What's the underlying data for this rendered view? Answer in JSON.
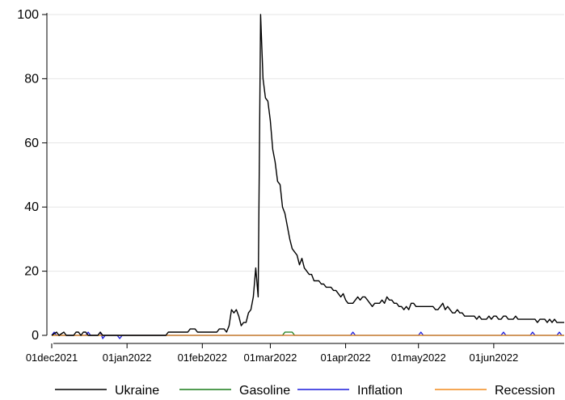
{
  "chart_data": {
    "type": "line",
    "title": "",
    "xlabel": "",
    "ylabel": "",
    "x_ticks": [
      "01dec2021",
      "01jan2022",
      "01feb2022",
      "01mar2022",
      "01apr2022",
      "01may2022",
      "01jun2022"
    ],
    "x_tick_dates": [
      "2021-12-01",
      "2022-01-01",
      "2022-02-01",
      "2022-03-01",
      "2022-04-01",
      "2022-05-01",
      "2022-06-01"
    ],
    "xlim": [
      "2021-11-29",
      "2022-06-30"
    ],
    "ylim": [
      0,
      100
    ],
    "y_ticks": [
      0,
      20,
      40,
      60,
      80,
      100
    ],
    "grid": "horizontal",
    "legend_position": "bottom",
    "series": [
      {
        "name": "Ukraine",
        "color": "#000000",
        "points": [
          [
            "2021-12-01",
            0
          ],
          [
            "2021-12-03",
            1
          ],
          [
            "2021-12-04",
            0
          ],
          [
            "2021-12-06",
            1
          ],
          [
            "2021-12-07",
            0
          ],
          [
            "2021-12-10",
            0
          ],
          [
            "2021-12-11",
            1
          ],
          [
            "2021-12-12",
            1
          ],
          [
            "2021-12-13",
            0
          ],
          [
            "2021-12-14",
            1
          ],
          [
            "2021-12-15",
            1
          ],
          [
            "2021-12-16",
            0
          ],
          [
            "2021-12-20",
            0
          ],
          [
            "2021-12-21",
            1
          ],
          [
            "2021-12-22",
            0
          ],
          [
            "2022-01-17",
            0
          ],
          [
            "2022-01-18",
            1
          ],
          [
            "2022-01-26",
            1
          ],
          [
            "2022-01-27",
            2
          ],
          [
            "2022-01-29",
            2
          ],
          [
            "2022-01-30",
            1
          ],
          [
            "2022-02-07",
            1
          ],
          [
            "2022-02-08",
            2
          ],
          [
            "2022-02-10",
            2
          ],
          [
            "2022-02-11",
            1
          ],
          [
            "2022-02-12",
            3
          ],
          [
            "2022-02-13",
            8
          ],
          [
            "2022-02-14",
            7
          ],
          [
            "2022-02-15",
            8
          ],
          [
            "2022-02-16",
            6
          ],
          [
            "2022-02-17",
            3
          ],
          [
            "2022-02-18",
            4
          ],
          [
            "2022-02-19",
            4
          ],
          [
            "2022-02-20",
            7
          ],
          [
            "2022-02-21",
            8
          ],
          [
            "2022-02-22",
            12
          ],
          [
            "2022-02-23",
            21
          ],
          [
            "2022-02-24",
            12
          ],
          [
            "2022-02-25",
            100
          ],
          [
            "2022-02-26",
            80
          ],
          [
            "2022-02-27",
            74
          ],
          [
            "2022-02-28",
            73
          ],
          [
            "2022-03-01",
            67
          ],
          [
            "2022-03-02",
            58
          ],
          [
            "2022-03-03",
            54
          ],
          [
            "2022-03-04",
            48
          ],
          [
            "2022-03-05",
            47
          ],
          [
            "2022-03-06",
            40
          ],
          [
            "2022-03-07",
            38
          ],
          [
            "2022-03-08",
            34
          ],
          [
            "2022-03-09",
            30
          ],
          [
            "2022-03-10",
            27
          ],
          [
            "2022-03-11",
            26
          ],
          [
            "2022-03-12",
            25
          ],
          [
            "2022-03-13",
            22
          ],
          [
            "2022-03-14",
            24
          ],
          [
            "2022-03-15",
            21
          ],
          [
            "2022-03-16",
            20
          ],
          [
            "2022-03-17",
            19
          ],
          [
            "2022-03-18",
            19
          ],
          [
            "2022-03-19",
            17
          ],
          [
            "2022-03-20",
            17
          ],
          [
            "2022-03-21",
            17
          ],
          [
            "2022-03-22",
            16
          ],
          [
            "2022-03-23",
            16
          ],
          [
            "2022-03-24",
            15
          ],
          [
            "2022-03-25",
            15
          ],
          [
            "2022-03-26",
            15
          ],
          [
            "2022-03-27",
            14
          ],
          [
            "2022-03-28",
            14
          ],
          [
            "2022-03-29",
            13
          ],
          [
            "2022-03-30",
            12
          ],
          [
            "2022-03-31",
            13
          ],
          [
            "2022-04-01",
            11
          ],
          [
            "2022-04-02",
            10
          ],
          [
            "2022-04-03",
            10
          ],
          [
            "2022-04-04",
            10
          ],
          [
            "2022-04-05",
            11
          ],
          [
            "2022-04-06",
            12
          ],
          [
            "2022-04-07",
            11
          ],
          [
            "2022-04-08",
            12
          ],
          [
            "2022-04-09",
            12
          ],
          [
            "2022-04-10",
            11
          ],
          [
            "2022-04-11",
            10
          ],
          [
            "2022-04-12",
            9
          ],
          [
            "2022-04-13",
            10
          ],
          [
            "2022-04-14",
            10
          ],
          [
            "2022-04-15",
            10
          ],
          [
            "2022-04-16",
            11
          ],
          [
            "2022-04-17",
            10
          ],
          [
            "2022-04-18",
            12
          ],
          [
            "2022-04-19",
            11
          ],
          [
            "2022-04-20",
            11
          ],
          [
            "2022-04-21",
            10
          ],
          [
            "2022-04-22",
            10
          ],
          [
            "2022-04-23",
            9
          ],
          [
            "2022-04-24",
            9
          ],
          [
            "2022-04-25",
            8
          ],
          [
            "2022-04-26",
            9
          ],
          [
            "2022-04-27",
            8
          ],
          [
            "2022-04-28",
            10
          ],
          [
            "2022-04-29",
            10
          ],
          [
            "2022-04-30",
            9
          ],
          [
            "2022-05-01",
            9
          ],
          [
            "2022-05-02",
            9
          ],
          [
            "2022-05-05",
            9
          ],
          [
            "2022-05-06",
            9
          ],
          [
            "2022-05-07",
            9
          ],
          [
            "2022-05-08",
            8
          ],
          [
            "2022-05-09",
            8
          ],
          [
            "2022-05-10",
            9
          ],
          [
            "2022-05-11",
            10
          ],
          [
            "2022-05-12",
            8
          ],
          [
            "2022-05-13",
            9
          ],
          [
            "2022-05-14",
            8
          ],
          [
            "2022-05-15",
            7
          ],
          [
            "2022-05-16",
            7
          ],
          [
            "2022-05-17",
            8
          ],
          [
            "2022-05-18",
            7
          ],
          [
            "2022-05-19",
            7
          ],
          [
            "2022-05-20",
            6
          ],
          [
            "2022-05-23",
            6
          ],
          [
            "2022-05-24",
            6
          ],
          [
            "2022-05-25",
            5
          ],
          [
            "2022-05-26",
            6
          ],
          [
            "2022-05-27",
            5
          ],
          [
            "2022-05-28",
            5
          ],
          [
            "2022-05-29",
            5
          ],
          [
            "2022-05-30",
            6
          ],
          [
            "2022-05-31",
            5
          ],
          [
            "2022-06-01",
            6
          ],
          [
            "2022-06-02",
            6
          ],
          [
            "2022-06-03",
            5
          ],
          [
            "2022-06-04",
            5
          ],
          [
            "2022-06-05",
            6
          ],
          [
            "2022-06-06",
            6
          ],
          [
            "2022-06-07",
            5
          ],
          [
            "2022-06-08",
            5
          ],
          [
            "2022-06-09",
            5
          ],
          [
            "2022-06-10",
            6
          ],
          [
            "2022-06-11",
            5
          ],
          [
            "2022-06-12",
            5
          ],
          [
            "2022-06-13",
            5
          ],
          [
            "2022-06-17",
            5
          ],
          [
            "2022-06-18",
            5
          ],
          [
            "2022-06-19",
            4
          ],
          [
            "2022-06-20",
            5
          ],
          [
            "2022-06-21",
            5
          ],
          [
            "2022-06-22",
            5
          ],
          [
            "2022-06-23",
            4
          ],
          [
            "2022-06-24",
            5
          ],
          [
            "2022-06-25",
            4
          ],
          [
            "2022-06-26",
            5
          ],
          [
            "2022-06-27",
            4
          ],
          [
            "2022-06-28",
            4
          ],
          [
            "2022-06-29",
            4
          ],
          [
            "2022-06-30",
            4
          ]
        ]
      },
      {
        "name": "Gasoline",
        "color": "#1a7d1a",
        "points": [
          [
            "2021-12-01",
            0
          ],
          [
            "2022-03-06",
            0
          ],
          [
            "2022-03-07",
            1
          ],
          [
            "2022-03-10",
            1
          ],
          [
            "2022-03-11",
            0
          ],
          [
            "2022-06-30",
            0
          ]
        ]
      },
      {
        "name": "Inflation",
        "color": "#1c1cdc",
        "points": [
          [
            "2021-12-01",
            0
          ],
          [
            "2021-12-02",
            1
          ],
          [
            "2021-12-03",
            0
          ],
          [
            "2021-12-15",
            0
          ],
          [
            "2021-12-16",
            1
          ],
          [
            "2021-12-17",
            0
          ],
          [
            "2021-12-20",
            0
          ],
          [
            "2021-12-21",
            1
          ],
          [
            "2021-12-22",
            -1
          ],
          [
            "2021-12-23",
            0
          ],
          [
            "2021-12-28",
            0
          ],
          [
            "2021-12-29",
            -1
          ],
          [
            "2021-12-30",
            0
          ],
          [
            "2022-04-03",
            0
          ],
          [
            "2022-04-04",
            1
          ],
          [
            "2022-04-05",
            0
          ],
          [
            "2022-05-01",
            0
          ],
          [
            "2022-05-02",
            1
          ],
          [
            "2022-05-03",
            0
          ],
          [
            "2022-06-04",
            0
          ],
          [
            "2022-06-05",
            1
          ],
          [
            "2022-06-06",
            0
          ],
          [
            "2022-06-16",
            0
          ],
          [
            "2022-06-17",
            1
          ],
          [
            "2022-06-18",
            0
          ],
          [
            "2022-06-27",
            0
          ],
          [
            "2022-06-28",
            1
          ],
          [
            "2022-06-29",
            0
          ],
          [
            "2022-06-30",
            0
          ]
        ]
      },
      {
        "name": "Recession",
        "color": "#f28b1e",
        "points": [
          [
            "2021-12-01",
            0
          ],
          [
            "2022-06-30",
            0
          ]
        ]
      }
    ]
  }
}
